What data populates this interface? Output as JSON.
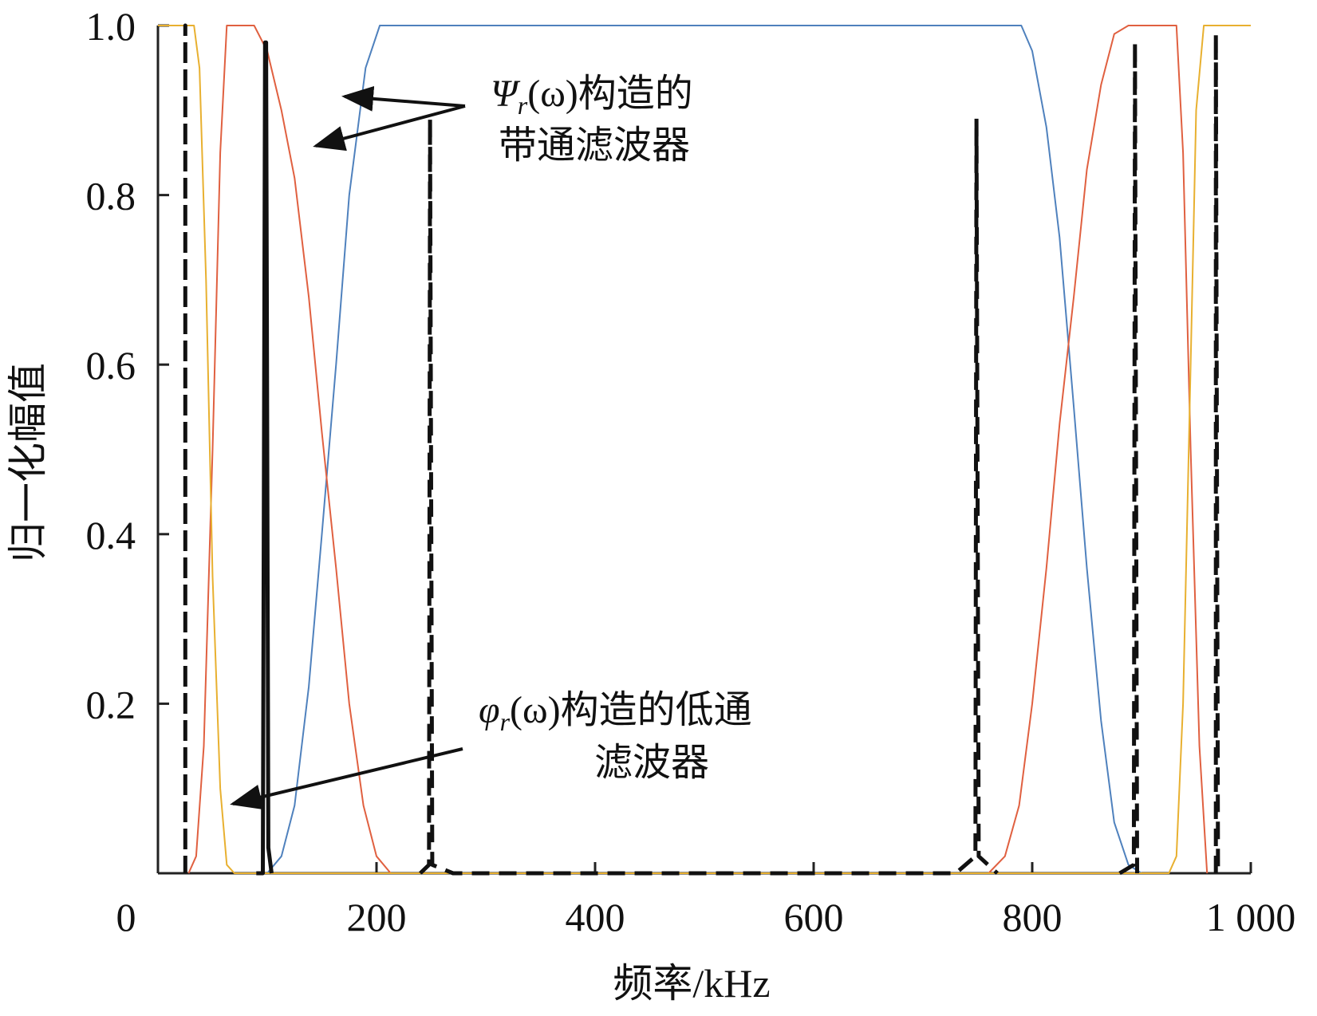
{
  "chart_data": {
    "type": "line",
    "title": "",
    "xlabel": "频率/kHz",
    "ylabel": "归一化幅值",
    "xlim": [
      0,
      1000
    ],
    "ylim": [
      0,
      1
    ],
    "x_ticks": [
      {
        "value": 0,
        "label": "0"
      },
      {
        "value": 200,
        "label": "200"
      },
      {
        "value": 400,
        "label": "400"
      },
      {
        "value": 600,
        "label": "600"
      },
      {
        "value": 800,
        "label": "800"
      },
      {
        "value": 1000,
        "label": "1 000"
      }
    ],
    "y_ticks": [
      {
        "value": 0.2,
        "label": "0.2"
      },
      {
        "value": 0.4,
        "label": "0.4"
      },
      {
        "value": 0.6,
        "label": "0.6"
      },
      {
        "value": 0.8,
        "label": "0.8"
      },
      {
        "value": 1.0,
        "label": "1.0"
      }
    ],
    "grid": false,
    "legend": "none",
    "series": [
      {
        "color": "#4f81bd",
        "style": "solid",
        "points": [
          [
            100,
            0
          ],
          [
            113,
            0.02
          ],
          [
            125,
            0.08
          ],
          [
            138,
            0.22
          ],
          [
            150,
            0.4
          ],
          [
            163,
            0.6
          ],
          [
            175,
            0.8
          ],
          [
            190,
            0.95
          ],
          [
            203,
            1.0
          ],
          [
            790,
            1.0
          ],
          [
            800,
            0.97
          ],
          [
            813,
            0.88
          ],
          [
            825,
            0.75
          ],
          [
            838,
            0.55
          ],
          [
            850,
            0.36
          ],
          [
            863,
            0.18
          ],
          [
            875,
            0.06
          ],
          [
            888,
            0.01
          ],
          [
            900,
            0
          ]
        ]
      },
      {
        "color": "#e06040",
        "style": "solid",
        "points": [
          [
            28,
            0
          ],
          [
            35,
            0.02
          ],
          [
            42,
            0.15
          ],
          [
            50,
            0.5
          ],
          [
            57,
            0.85
          ],
          [
            63,
            1.0
          ],
          [
            88,
            1.0
          ],
          [
            100,
            0.97
          ],
          [
            113,
            0.9
          ],
          [
            125,
            0.82
          ],
          [
            138,
            0.68
          ],
          [
            150,
            0.52
          ],
          [
            163,
            0.36
          ],
          [
            175,
            0.2
          ],
          [
            188,
            0.08
          ],
          [
            200,
            0.02
          ],
          [
            213,
            0
          ],
          [
            760,
            0
          ],
          [
            775,
            0.02
          ],
          [
            788,
            0.08
          ],
          [
            800,
            0.2
          ],
          [
            813,
            0.36
          ],
          [
            825,
            0.53
          ],
          [
            838,
            0.68
          ],
          [
            850,
            0.83
          ],
          [
            863,
            0.93
          ],
          [
            875,
            0.99
          ],
          [
            888,
            1.0
          ],
          [
            932,
            1.0
          ],
          [
            938,
            0.85
          ],
          [
            945,
            0.5
          ],
          [
            953,
            0.15
          ],
          [
            960,
            0
          ]
        ]
      },
      {
        "color": "#e8b030",
        "style": "solid",
        "points": [
          [
            0,
            1.0
          ],
          [
            33,
            1.0
          ],
          [
            38,
            0.95
          ],
          [
            44,
            0.7
          ],
          [
            50,
            0.35
          ],
          [
            57,
            0.1
          ],
          [
            63,
            0.01
          ],
          [
            70,
            0
          ],
          [
            925,
            0
          ],
          [
            932,
            0.02
          ],
          [
            938,
            0.2
          ],
          [
            945,
            0.6
          ],
          [
            950,
            0.9
          ],
          [
            957,
            1.0
          ],
          [
            1000,
            1.0
          ]
        ]
      },
      {
        "color": "#111111",
        "style": "dashed",
        "points": [
          [
            25,
            0
          ],
          [
            25,
            1.0
          ],
          [
            25,
            0
          ]
        ]
      },
      {
        "color": "#111111",
        "style": "solid",
        "points": [
          [
            90,
            0
          ],
          [
            96,
            0
          ],
          [
            98,
            0.98
          ],
          [
            99,
            0.98
          ],
          [
            101,
            0.03
          ],
          [
            104,
            0
          ]
        ]
      },
      {
        "color": "#111111",
        "style": "dashed",
        "points": [
          [
            240,
            0
          ],
          [
            248,
            0.01
          ],
          [
            249,
            0.89
          ],
          [
            251,
            0.01
          ],
          [
            270,
            0
          ],
          [
            730,
            0
          ],
          [
            748,
            0.02
          ],
          [
            749,
            0.89
          ],
          [
            751,
            0.02
          ],
          [
            768,
            0
          ]
        ]
      },
      {
        "color": "#111111",
        "style": "dashed",
        "points": [
          [
            880,
            0
          ],
          [
            893,
            0.01
          ],
          [
            894,
            0.98
          ],
          [
            896,
            0
          ]
        ]
      },
      {
        "color": "#111111",
        "style": "dashed",
        "points": [
          [
            968,
            0
          ],
          [
            968,
            0.99
          ],
          [
            970,
            0
          ]
        ]
      }
    ],
    "annotations": [
      {
        "text_parts": [
          "Ψ",
          "r",
          "(ω)构造的"
        ],
        "text_line2": "带通滤波器"
      },
      {
        "text_parts": [
          "φ",
          "r",
          "(ω)构造的低通"
        ],
        "text_line2": "滤波器"
      }
    ]
  }
}
